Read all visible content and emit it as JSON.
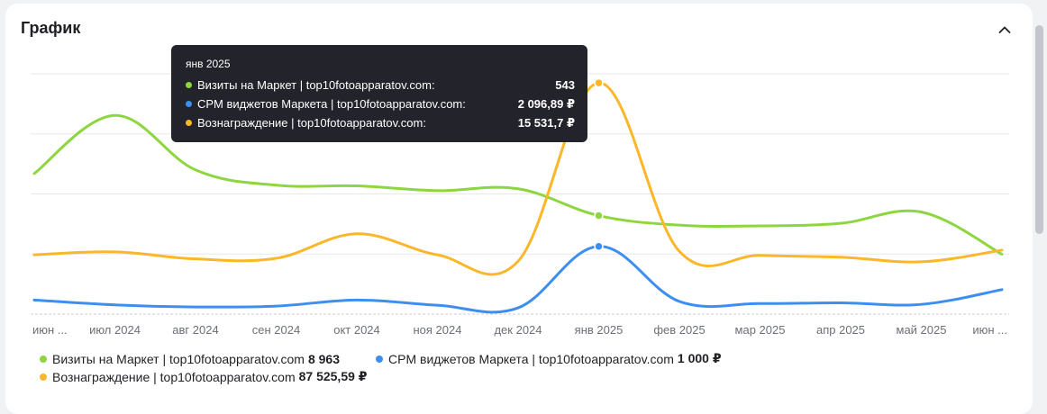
{
  "card": {
    "title": "График"
  },
  "chart_data": {
    "type": "line",
    "categories": [
      "июн ...",
      "июл 2024",
      "авг 2024",
      "сен 2024",
      "окт 2024",
      "ноя 2024",
      "дек 2024",
      "янв 2025",
      "фев 2025",
      "мар 2025",
      "апр 2025",
      "май 2025",
      "июн ..."
    ],
    "series": [
      {
        "name": "Визиты на Маркет | top10fotoapparatov.com",
        "total": "8 963",
        "color": "#8ed63f",
        "values": [
          1700,
          3300,
          1800,
          1380,
          1360,
          1230,
          1280,
          543,
          280,
          260,
          330,
          640,
          -520
        ]
      },
      {
        "name": "CPM виджетов Маркета | top10fotoapparatov.com",
        "total": "1 000 ₽",
        "color": "#3c8ff0",
        "values": [
          -1000,
          -1280,
          -1400,
          -1350,
          -1000,
          -1300,
          -1450,
          2096.89,
          -1080,
          -1200,
          -1160,
          -1250,
          -400
        ]
      },
      {
        "name": "Вознаграждение | top10fotoapparatov.com",
        "total": "87 525,59 ₽",
        "color": "#fbb72a",
        "values": [
          800,
          1050,
          450,
          500,
          2600,
          800,
          250,
          15531.7,
          1100,
          750,
          600,
          200,
          1200
        ]
      }
    ],
    "grid": true,
    "legend": "bottom",
    "tooltip": {
      "title": "янв 2025",
      "rows": [
        {
          "label": "Визиты на Маркет | top10fotoapparatov.com:",
          "value": "543"
        },
        {
          "label": "CPM виджетов Маркета | top10fotoapparatov.com:",
          "value": "2 096,89 ₽"
        },
        {
          "label": "Вознаграждение | top10fotoapparatov.com:",
          "value": "15 531,7 ₽"
        }
      ]
    }
  }
}
